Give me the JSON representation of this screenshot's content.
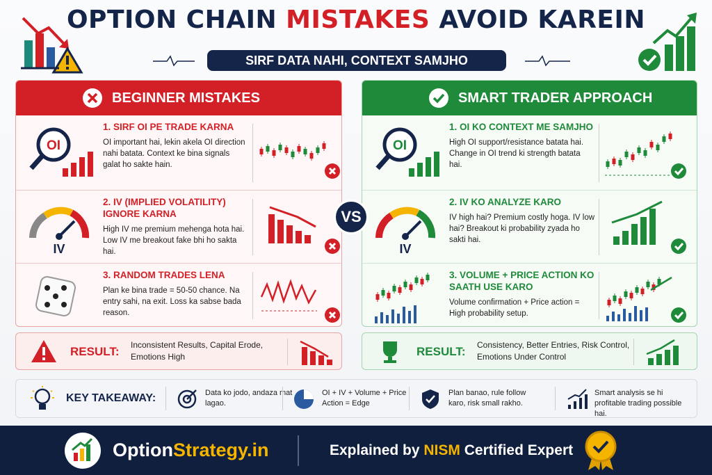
{
  "header": {
    "title_part1": "OPTION CHAIN",
    "title_highlight": "MISTAKES",
    "title_part2": "AVOID KAREIN",
    "subtitle": "SIRF DATA NAHI, CONTEXT SAMJHO"
  },
  "left": {
    "heading": "BEGINNER MISTAKES",
    "items": [
      {
        "icon_label": "OI",
        "title": "1. SIRF OI PE TRADE KARNA",
        "text": "OI important hai, lekin akela OI direction nahi batata. Context ke bina signals galat ho sakte hain."
      },
      {
        "icon_label": "IV",
        "title": "2. IV (IMPLIED VOLATILITY) IGNORE KARNA",
        "text": "High IV me premium mehenga hota hai. Low IV me breakout fake bhi ho sakta hai."
      },
      {
        "title": "3. RANDOM TRADES LENA",
        "text": "Plan ke bina trade = 50-50 chance. Na entry sahi, na exit. Loss ka sabse bada reason."
      }
    ],
    "result_label": "RESULT:",
    "result_text": "Inconsistent Results, Capital Erode, Emotions High"
  },
  "vs": "VS",
  "right": {
    "heading": "SMART TRADER APPROACH",
    "items": [
      {
        "icon_label": "OI",
        "title": "1. OI KO CONTEXT ME SAMJHO",
        "text": "High OI support/resistance batata hai. Change in OI trend ki strength batata hai."
      },
      {
        "icon_label": "IV",
        "title": "2. IV KO ANALYZE KARO",
        "text": "IV high hai? Premium costly hoga. IV low hai? Breakout ki probability zyada ho sakti hai."
      },
      {
        "title": "3. VOLUME + PRICE ACTION KO SAATH USE KARO",
        "text": "Volume confirmation + Price action = High probability setup."
      }
    ],
    "result_label": "RESULT:",
    "result_text": "Consistency, Better Entries, Risk Control, Emotions Under Control"
  },
  "takeaway": {
    "label": "KEY TAKEAWAY:",
    "items": [
      "Data ko jodo, andaza mat lagao.",
      "OI + IV + Volume + Price Action = Edge",
      "Plan banao, rule follow karo, risk small rakho.",
      "Smart analysis se hi profitable trading possible hai."
    ]
  },
  "footer": {
    "brand_part1": "Option",
    "brand_part2": "Strategy.in",
    "explained": "Explained by",
    "nism": "NISM",
    "certified": "Certified Expert"
  }
}
